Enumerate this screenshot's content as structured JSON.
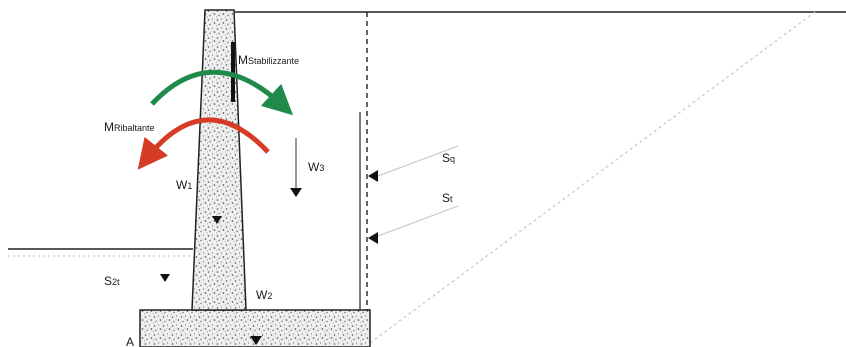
{
  "diagram": {
    "labels": {
      "m_stabilizzante_main": "M",
      "m_stabilizzante_sub": "Stabilizzante",
      "m_ribaltante_main": "M",
      "m_ribaltante_sub": "Ribaltante",
      "w1_main": "W",
      "w1_sub": "1",
      "w2_main": "W",
      "w2_sub": "2",
      "w3_main": "W",
      "w3_sub": "3",
      "sq_main": "S",
      "sq_sub": "q",
      "st_main": "S",
      "st_sub": "t",
      "s2t_main": "S",
      "s2t_sub": "2t",
      "point_a": "A"
    },
    "colors": {
      "stabilizing_arrow": "#1f8a4a",
      "overturning_arrow": "#d63b26",
      "wall_fill": "#eeeeee",
      "line": "#222222",
      "soil_wedge_line": "#c8c8c8"
    },
    "icons": {
      "stabilizing": "curved-arrow-clockwise",
      "overturning": "curved-arrow-counterclockwise",
      "load": "down-arrow"
    }
  }
}
